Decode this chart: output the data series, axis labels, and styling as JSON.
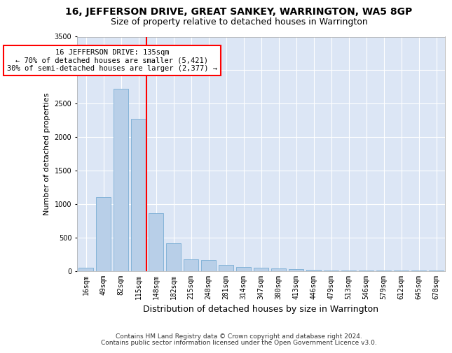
{
  "title": "16, JEFFERSON DRIVE, GREAT SANKEY, WARRINGTON, WA5 8GP",
  "subtitle": "Size of property relative to detached houses in Warrington",
  "xlabel": "Distribution of detached houses by size in Warrington",
  "ylabel": "Number of detached properties",
  "footer_line1": "Contains HM Land Registry data © Crown copyright and database right 2024.",
  "footer_line2": "Contains public sector information licensed under the Open Government Licence v3.0.",
  "bar_labels": [
    "16sqm",
    "49sqm",
    "82sqm",
    "115sqm",
    "148sqm",
    "182sqm",
    "215sqm",
    "248sqm",
    "281sqm",
    "314sqm",
    "347sqm",
    "380sqm",
    "413sqm",
    "446sqm",
    "479sqm",
    "513sqm",
    "546sqm",
    "579sqm",
    "612sqm",
    "645sqm",
    "678sqm"
  ],
  "bar_values": [
    50,
    1100,
    2720,
    2270,
    860,
    415,
    175,
    165,
    90,
    60,
    45,
    40,
    30,
    20,
    10,
    5,
    5,
    3,
    3,
    2,
    2
  ],
  "bar_color": "#b8cfe8",
  "bar_edge_color": "#7aadd4",
  "vline_color": "red",
  "annotation_text": "16 JEFFERSON DRIVE: 135sqm\n← 70% of detached houses are smaller (5,421)\n30% of semi-detached houses are larger (2,377) →",
  "annotation_box_color": "white",
  "annotation_box_edge": "red",
  "ylim": [
    0,
    3500
  ],
  "yticks": [
    0,
    500,
    1000,
    1500,
    2000,
    2500,
    3000,
    3500
  ],
  "plot_background": "#dce6f5",
  "fig_background": "#ffffff",
  "grid_color": "white",
  "title_fontsize": 10,
  "subtitle_fontsize": 9,
  "xlabel_fontsize": 9,
  "ylabel_fontsize": 8,
  "tick_fontsize": 7,
  "footer_fontsize": 6.5,
  "annotation_fontsize": 7.5
}
